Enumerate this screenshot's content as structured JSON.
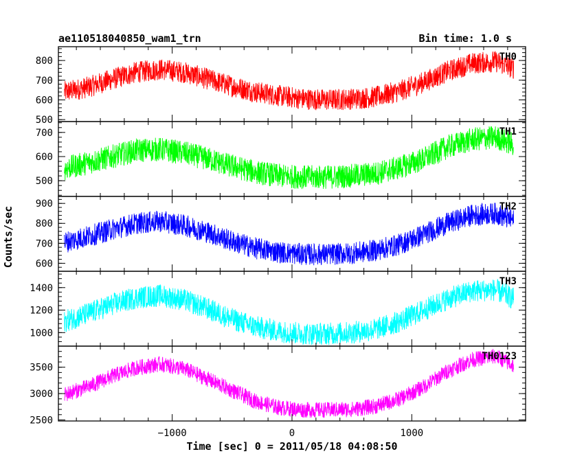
{
  "header": {
    "left_title": "ae110518040850_wam1_trn",
    "right_title": "Bin time: 1.0 s"
  },
  "chart_data": {
    "type": "line",
    "title": "ae110518040850_wam1_trn",
    "subtitle": "Bin time: 1.0 s",
    "xlabel": "Time [sec] 0 = 2011/05/18 04:08:50",
    "ylabel": "Counts/sec",
    "xlim": [
      -1950,
      1950
    ],
    "x_ticks": [
      -1000,
      0,
      1000
    ],
    "x_tick_labels": [
      "−1000",
      "0",
      "1000"
    ],
    "grid": false,
    "x_envelope": [
      -1900,
      -1700,
      -1500,
      -1300,
      -1100,
      -900,
      -700,
      -500,
      -300,
      -100,
      100,
      300,
      500,
      700,
      900,
      1100,
      1300,
      1500,
      1700,
      1850
    ],
    "panels": [
      {
        "label": "TH0",
        "color": "#ff0000",
        "ylim": [
          490,
          870
        ],
        "y_ticks": [
          500,
          600,
          700,
          800
        ],
        "y_tick_labels": [
          "500",
          "600",
          "700",
          "800"
        ],
        "mean": [
          640,
          665,
          705,
          740,
          755,
          740,
          705,
          670,
          640,
          620,
          605,
          600,
          605,
          615,
          645,
          690,
          745,
          785,
          795,
          760
        ],
        "spread": 55
      },
      {
        "label": "TH1",
        "color": "#00ff00",
        "ylim": [
          435,
          745
        ],
        "y_ticks": [
          500,
          600,
          700
        ],
        "y_tick_labels": [
          "500",
          "600",
          "700"
        ],
        "mean": [
          550,
          575,
          600,
          625,
          630,
          615,
          590,
          560,
          535,
          520,
          515,
          515,
          520,
          530,
          555,
          590,
          640,
          670,
          680,
          650
        ],
        "spread": 50
      },
      {
        "label": "TH2",
        "color": "#0000ff",
        "ylim": [
          560,
          935
        ],
        "y_ticks": [
          600,
          700,
          800,
          900
        ],
        "y_tick_labels": [
          "600",
          "700",
          "800",
          "900"
        ],
        "mean": [
          705,
          735,
          770,
          800,
          810,
          790,
          755,
          710,
          675,
          655,
          645,
          645,
          650,
          665,
          695,
          745,
          800,
          840,
          850,
          815
        ],
        "spread": 55
      },
      {
        "label": "TH3",
        "color": "#00ffff",
        "ylim": [
          880,
          1545
        ],
        "y_ticks": [
          1000,
          1200,
          1400
        ],
        "y_tick_labels": [
          "1000",
          "1200",
          "1400"
        ],
        "mean": [
          1100,
          1170,
          1250,
          1310,
          1330,
          1290,
          1210,
          1120,
          1050,
          1010,
          990,
          990,
          1000,
          1030,
          1100,
          1200,
          1300,
          1370,
          1380,
          1300
        ],
        "spread": 100
      },
      {
        "label": "TH0123",
        "color": "#ff00ff",
        "ylim": [
          2480,
          3900
        ],
        "y_ticks": [
          2500,
          3000,
          3500
        ],
        "y_tick_labels": [
          "2500",
          "3000",
          "3500"
        ],
        "mean": [
          2980,
          3130,
          3330,
          3490,
          3560,
          3470,
          3270,
          3060,
          2850,
          2730,
          2690,
          2690,
          2700,
          2760,
          2900,
          3130,
          3430,
          3640,
          3710,
          3530
        ],
        "spread": 150
      }
    ]
  }
}
